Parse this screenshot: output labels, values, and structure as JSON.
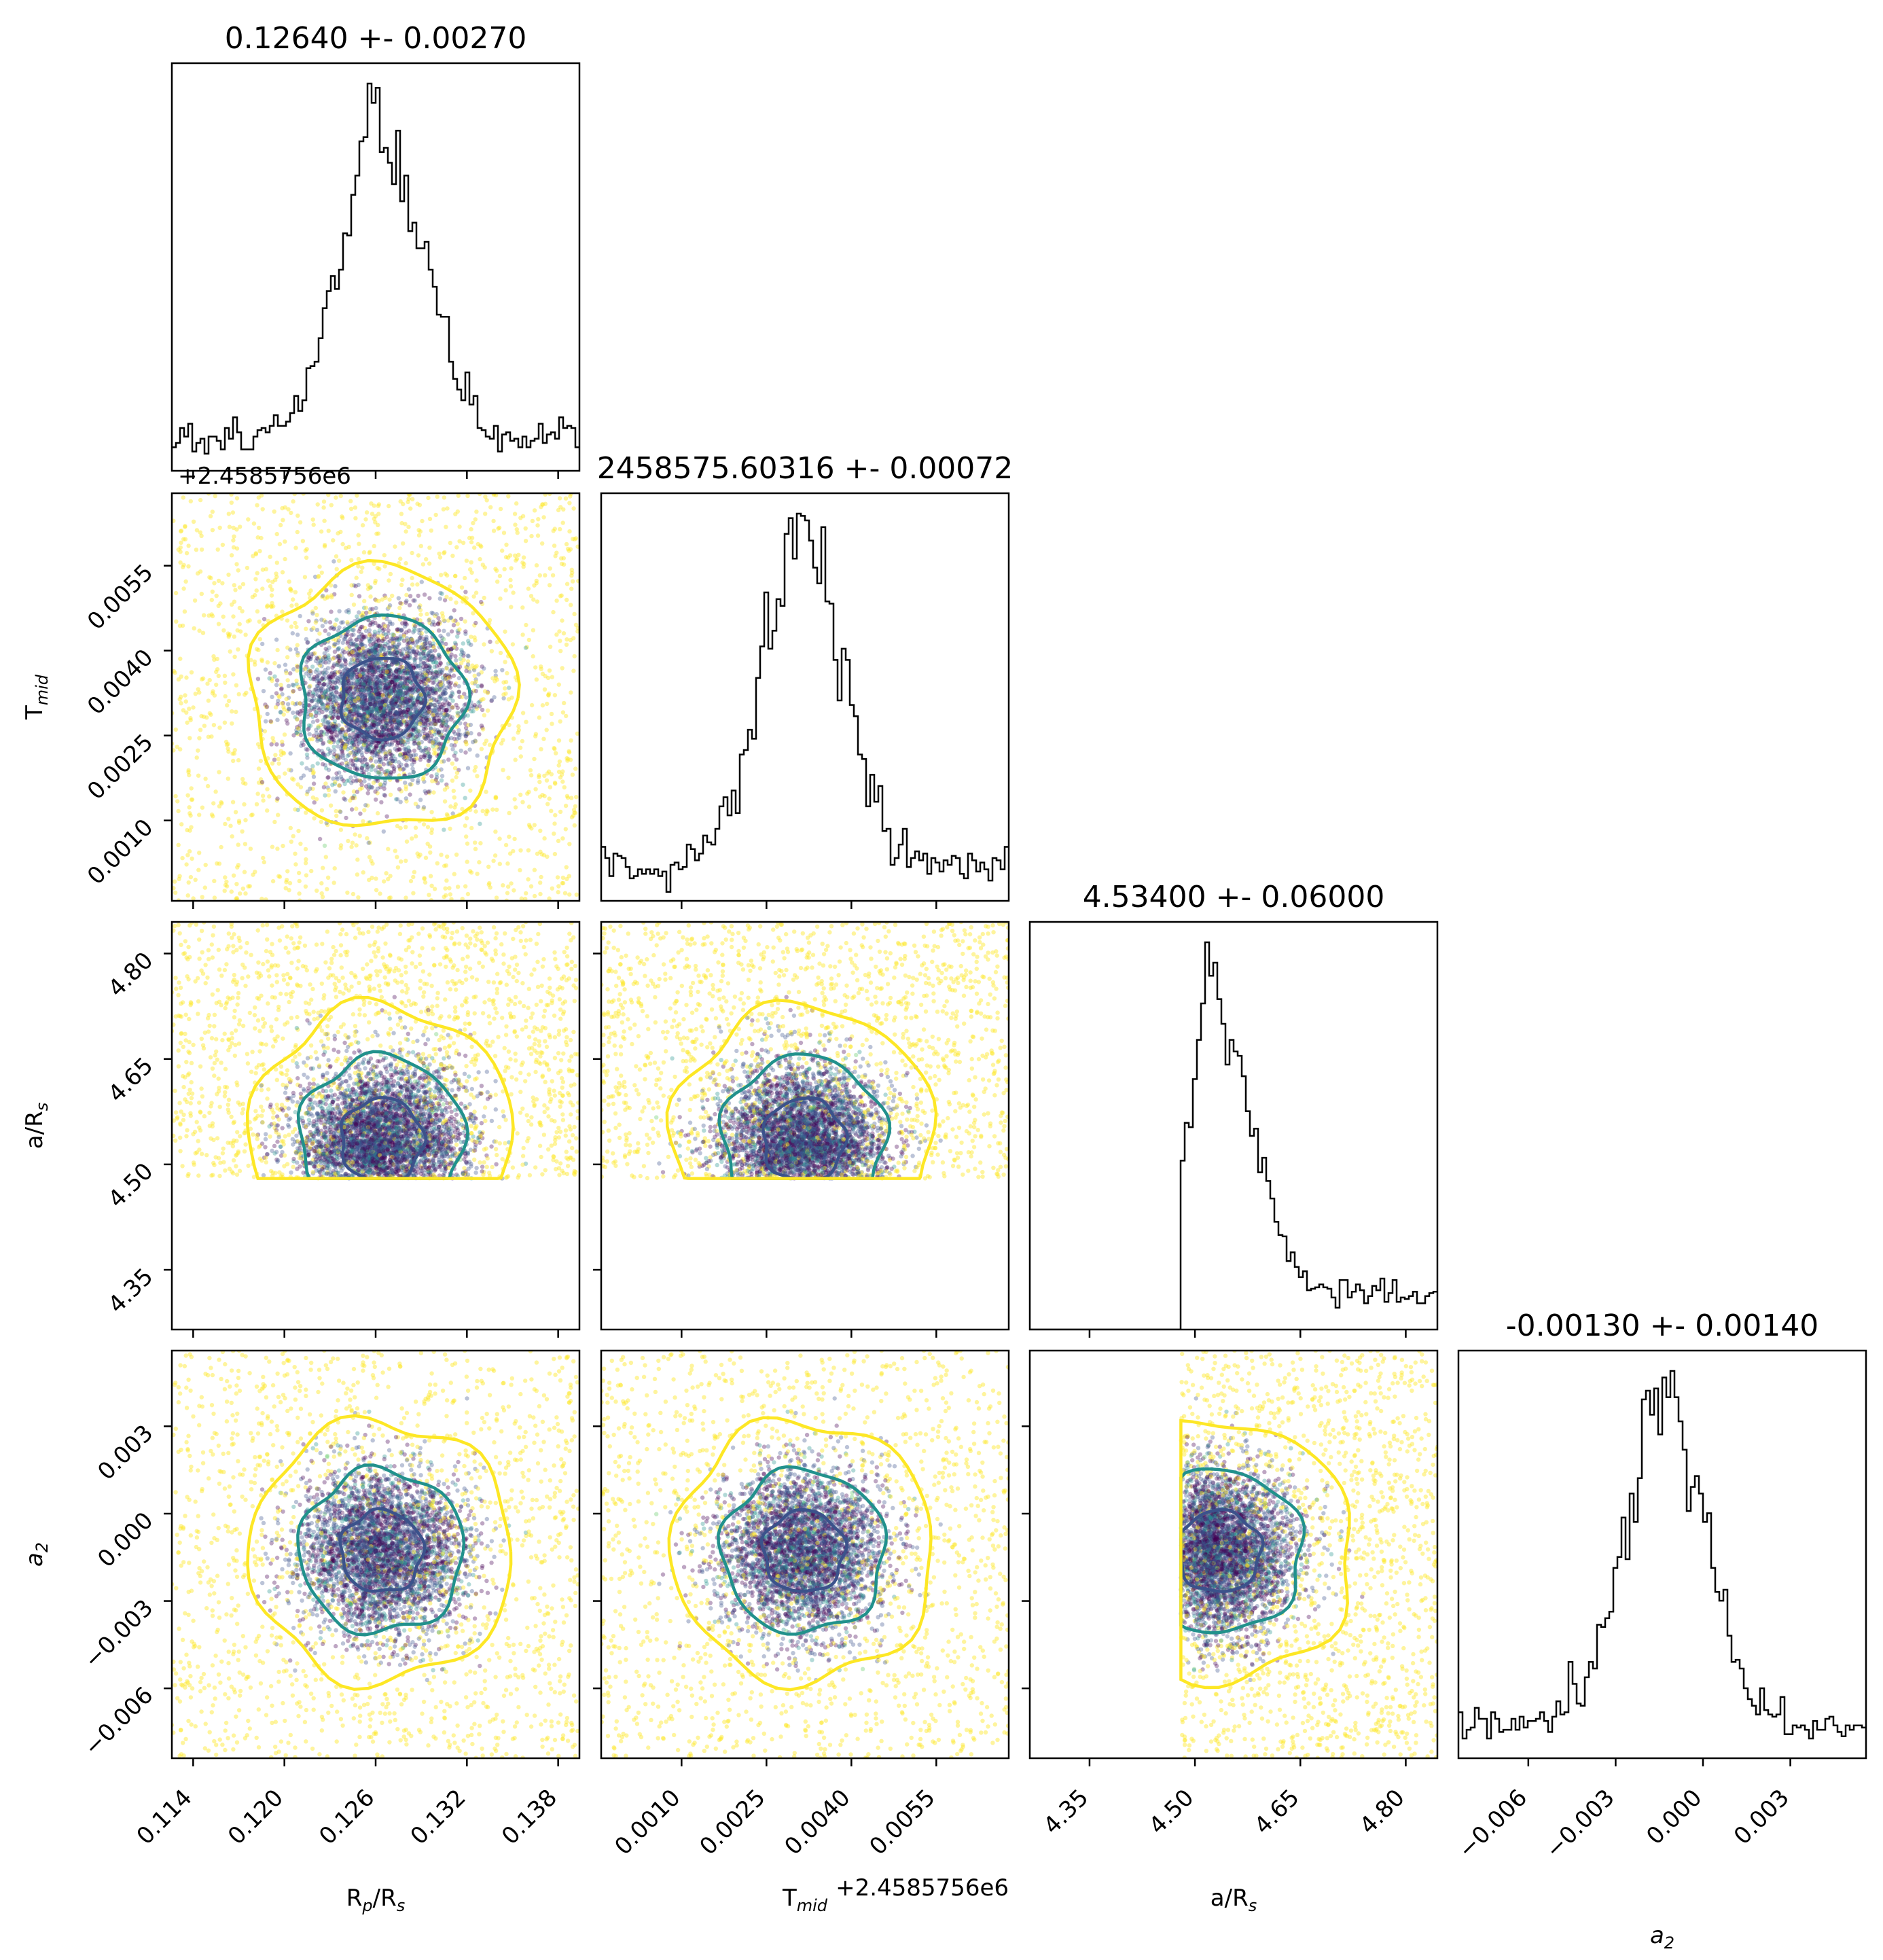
{
  "chart_data": {
    "type": "corner",
    "parameters": [
      {
        "key": "rp",
        "label_main": "R",
        "label_sub": "p",
        "label_tail": "/R",
        "label_tail_sub": "s",
        "median": 0.1264,
        "sigma": 0.0027,
        "range": [
          0.1126,
          0.1394
        ],
        "ticks": [
          0.114,
          0.12,
          0.126,
          0.132,
          0.138
        ],
        "tick_labels": [
          "0.114",
          "0.120",
          "0.126",
          "0.132",
          "0.138"
        ],
        "title": "0.12640 +- 0.00270"
      },
      {
        "key": "tmid",
        "label_main": "T",
        "label_sub": "mid",
        "label_tail": "",
        "label_tail_sub": "",
        "median": 0.00316,
        "sigma": 0.00072,
        "range": [
          -0.00042,
          0.00678
        ],
        "ticks": [
          0.001,
          0.0025,
          0.004,
          0.0055
        ],
        "tick_labels": [
          "0.0010",
          "0.0025",
          "0.0040",
          "0.0055"
        ],
        "offset_text": "+2.4585756e6",
        "title": "2458575.60316 +- 0.00072"
      },
      {
        "key": "ars",
        "label_main": "a/R",
        "label_sub": "s",
        "label_tail": "",
        "label_tail_sub": "",
        "median": 4.534,
        "sigma": 0.06,
        "range": [
          4.265,
          4.845
        ],
        "lower_bound": 4.48,
        "ticks": [
          4.35,
          4.5,
          4.65,
          4.8
        ],
        "tick_labels": [
          "4.35",
          "4.50",
          "4.65",
          "4.80"
        ],
        "title": "4.53400 +- 0.06000"
      },
      {
        "key": "a2",
        "label_main": "a",
        "label_sub": "2",
        "label_tail": "",
        "label_tail_sub": "",
        "italic": true,
        "median": -0.0013,
        "sigma": 0.0014,
        "range": [
          -0.0084,
          0.0056
        ],
        "ticks": [
          -0.006,
          -0.003,
          0.0,
          0.003
        ],
        "tick_labels": [
          "−0.006",
          "−0.003",
          "0.000",
          "0.003"
        ],
        "title": "-0.00130 +- 0.00140"
      }
    ],
    "contour_colors": [
      "#3b528b",
      "#21918c",
      "#fde725"
    ],
    "point_colors": [
      "#440154",
      "#3b528b",
      "#21918c",
      "#5ec962",
      "#fde725"
    ],
    "line_color": "#000000"
  }
}
